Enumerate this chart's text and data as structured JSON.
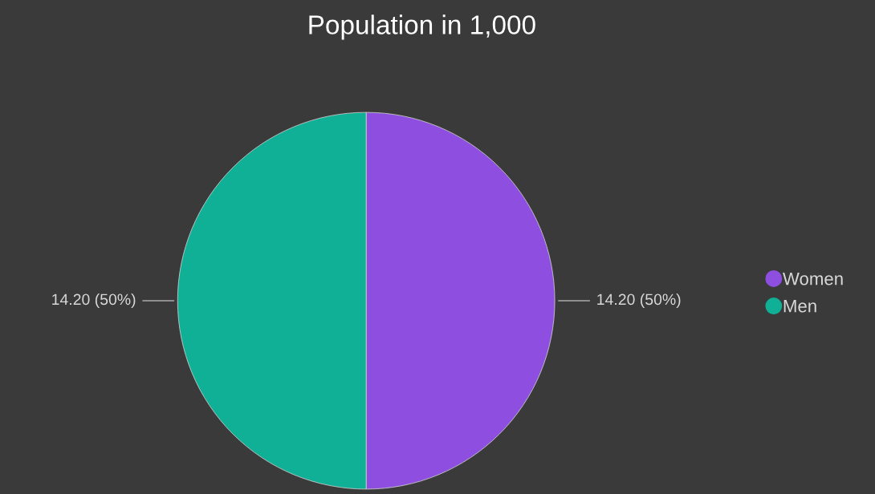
{
  "chart_data": {
    "type": "pie",
    "title": "Population in 1,000",
    "categories": [
      "Women",
      "Men"
    ],
    "values": [
      14.2,
      14.2
    ],
    "colors": [
      "#8e4fe0",
      "#10b096"
    ],
    "value_labels": [
      "14.20 (50%)",
      "14.20 (50%)"
    ],
    "legend": "right"
  }
}
